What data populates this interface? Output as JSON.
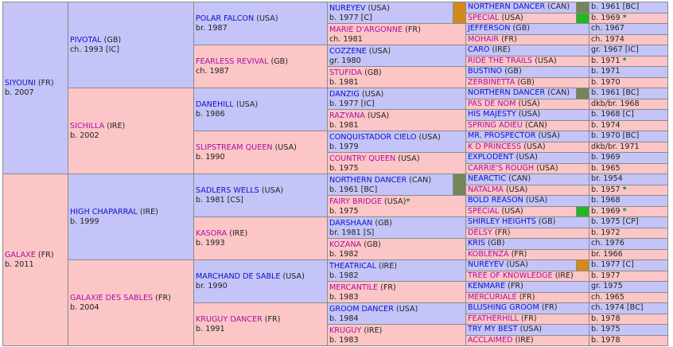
{
  "marker_colors": {
    "orange": "#d28a1c",
    "green": "#22b622",
    "olive": "#74855a"
  },
  "gen1": [
    {
      "name": "SIYOUNI",
      "country": "(FR)",
      "info": "b. 2007",
      "sex": "m"
    },
    {
      "name": "GALAXE",
      "country": "(FR)",
      "info": "b. 2011",
      "sex": "f"
    }
  ],
  "gen2": [
    {
      "name": "PIVOTAL",
      "country": "(GB)",
      "info": "ch. 1993 [IC]",
      "sex": "m"
    },
    {
      "name": "SICHILLA",
      "country": "(IRE)",
      "info": "b. 2002",
      "sex": "f"
    },
    {
      "name": "HIGH CHAPARRAL",
      "country": "(IRE)",
      "info": "b. 1999",
      "sex": "m"
    },
    {
      "name": "GALAXIE DES SABLES",
      "country": "(FR)",
      "info": "b. 2004",
      "sex": "f"
    }
  ],
  "gen3": [
    {
      "name": "POLAR FALCON",
      "country": "(USA)",
      "info": "br. 1987",
      "sex": "m"
    },
    {
      "name": "FEARLESS REVIVAL",
      "country": "(GB)",
      "info": "ch. 1987",
      "sex": "f"
    },
    {
      "name": "DANEHILL",
      "country": "(USA)",
      "info": "b. 1986",
      "sex": "m"
    },
    {
      "name": "SLIPSTREAM QUEEN",
      "country": "(USA)",
      "info": "b. 1990",
      "sex": "f"
    },
    {
      "name": "SADLERS WELLS",
      "country": "(USA)",
      "info": "b. 1981 [CS]",
      "sex": "m"
    },
    {
      "name": "KASORA",
      "country": "(IRE)",
      "info": "b. 1993",
      "sex": "f"
    },
    {
      "name": "MARCHAND DE SABLE",
      "country": "(USA)",
      "info": "br. 1990",
      "sex": "m"
    },
    {
      "name": "KRUGUY DANCER",
      "country": "(FR)",
      "info": "b. 1991",
      "sex": "f"
    }
  ],
  "gen4": [
    {
      "name": "NUREYEV",
      "country": "(USA)",
      "info": "b. 1977 [C]",
      "sex": "m",
      "marker": "orange"
    },
    {
      "name": "MARIE D'ARGONNE",
      "country": "(FR)",
      "info": "ch. 1981",
      "sex": "f"
    },
    {
      "name": "COZZENE",
      "country": "(USA)",
      "info": "gr. 1980",
      "sex": "m"
    },
    {
      "name": "STUFIDA",
      "country": "(GB)",
      "info": "b. 1981",
      "sex": "f"
    },
    {
      "name": "DANZIG",
      "country": "(USA)",
      "info": "b. 1977 [IC]",
      "sex": "m"
    },
    {
      "name": "RAZYANA",
      "country": "(USA)",
      "info": "b. 1981",
      "sex": "f"
    },
    {
      "name": "CONQUISTADOR CIELO",
      "country": "(USA)",
      "info": "b. 1979",
      "sex": "m"
    },
    {
      "name": "COUNTRY QUEEN",
      "country": "(USA)",
      "info": "b. 1975",
      "sex": "f"
    },
    {
      "name": "NORTHERN DANCER",
      "country": "(CAN)",
      "info": "b. 1961 [BC]",
      "sex": "m",
      "marker": "olive"
    },
    {
      "name": "FAIRY BRIDGE",
      "country": "(USA)",
      "info": "b. 1975",
      "sex": "f",
      "star": "*"
    },
    {
      "name": "DARSHAAN",
      "country": "(GB)",
      "info": "br. 1981 [S]",
      "sex": "m"
    },
    {
      "name": "KOZANA",
      "country": "(GB)",
      "info": "b. 1982",
      "sex": "f"
    },
    {
      "name": "THEATRICAL",
      "country": "(IRE)",
      "info": "b. 1982",
      "sex": "m"
    },
    {
      "name": "MERCANTILE",
      "country": "(FR)",
      "info": "b. 1983",
      "sex": "f"
    },
    {
      "name": "GROOM DANCER",
      "country": "(USA)",
      "info": "b. 1984",
      "sex": "m"
    },
    {
      "name": "KRUGUY",
      "country": "(IRE)",
      "info": "b. 1983",
      "sex": "f"
    }
  ],
  "gen5": [
    {
      "name": "NORTHERN DANCER",
      "country": "(CAN)",
      "info": "b. 1961 [BC]",
      "sex": "m",
      "marker": "olive"
    },
    {
      "name": "SPECIAL",
      "country": "(USA)",
      "info": "b. 1969",
      "sex": "f",
      "marker": "green",
      "star": "*"
    },
    {
      "name": "JEFFERSON",
      "country": "(GB)",
      "info": "ch. 1967",
      "sex": "m"
    },
    {
      "name": "MOHAIR",
      "country": "(FR)",
      "info": "ch. 1974",
      "sex": "f"
    },
    {
      "name": "CARO",
      "country": "(IRE)",
      "info": "gr. 1967 [IC]",
      "sex": "m"
    },
    {
      "name": "RIDE THE TRAILS",
      "country": "(USA)",
      "info": "b. 1971",
      "sex": "f",
      "star": "*"
    },
    {
      "name": "BUSTINO",
      "country": "(GB)",
      "info": "b. 1971",
      "sex": "m"
    },
    {
      "name": "ZERBINETTA",
      "country": "(GB)",
      "info": "b. 1970",
      "sex": "f"
    },
    {
      "name": "NORTHERN DANCER",
      "country": "(CAN)",
      "info": "b. 1961 [BC]",
      "sex": "m",
      "marker": "olive"
    },
    {
      "name": "PAS DE NOM",
      "country": "(USA)",
      "info": "dkb/br. 1968",
      "sex": "f"
    },
    {
      "name": "HIS MAJESTY",
      "country": "(USA)",
      "info": "b. 1968 [C]",
      "sex": "m"
    },
    {
      "name": "SPRING ADIEU",
      "country": "(CAN)",
      "info": "b. 1974",
      "sex": "f"
    },
    {
      "name": "MR. PROSPECTOR",
      "country": "(USA)",
      "info": "b. 1970 [BC]",
      "sex": "m"
    },
    {
      "name": "K D PRINCESS",
      "country": "(USA)",
      "info": "dkb/br. 1971",
      "sex": "f"
    },
    {
      "name": "EXPLODENT",
      "country": "(USA)",
      "info": "b. 1969",
      "sex": "m"
    },
    {
      "name": "CARRIE'S ROUGH",
      "country": "(USA)",
      "info": "b. 1965",
      "sex": "f"
    },
    {
      "name": "NEARCTIC",
      "country": "(CAN)",
      "info": "br. 1954",
      "sex": "m"
    },
    {
      "name": "NATALMA",
      "country": "(USA)",
      "info": "b. 1957",
      "sex": "f",
      "star": "*"
    },
    {
      "name": "BOLD REASON",
      "country": "(USA)",
      "info": "b. 1968",
      "sex": "m"
    },
    {
      "name": "SPECIAL",
      "country": "(USA)",
      "info": "b. 1969",
      "sex": "f",
      "marker": "green",
      "star": "*"
    },
    {
      "name": "SHIRLEY HEIGHTS",
      "country": "(GB)",
      "info": "b. 1975 [CP]",
      "sex": "m"
    },
    {
      "name": "DELSY",
      "country": "(FR)",
      "info": "b. 1972",
      "sex": "f"
    },
    {
      "name": "KRIS",
      "country": "(GB)",
      "info": "ch. 1976",
      "sex": "m"
    },
    {
      "name": "KOBLENZA",
      "country": "(FR)",
      "info": "br. 1966",
      "sex": "f"
    },
    {
      "name": "NUREYEV",
      "country": "(USA)",
      "info": "b. 1977 [C]",
      "sex": "m",
      "marker": "orange"
    },
    {
      "name": "TREE OF KNOWLEDGE",
      "country": "(IRE)",
      "info": "b. 1977",
      "sex": "f"
    },
    {
      "name": "KENMARE",
      "country": "(FR)",
      "info": "gr. 1975",
      "sex": "m"
    },
    {
      "name": "MERCURIALE",
      "country": "(FR)",
      "info": "ch. 1965",
      "sex": "f"
    },
    {
      "name": "BLUSHING GROOM",
      "country": "(FR)",
      "info": "ch. 1974 [BC]",
      "sex": "m"
    },
    {
      "name": "FEATHERHILL",
      "country": "(FR)",
      "info": "b. 1978",
      "sex": "f"
    },
    {
      "name": "TRY MY BEST",
      "country": "(USA)",
      "info": "b. 1975",
      "sex": "m"
    },
    {
      "name": "ACCLAIMED",
      "country": "(IRE)",
      "info": "b. 1978",
      "sex": "f"
    }
  ]
}
